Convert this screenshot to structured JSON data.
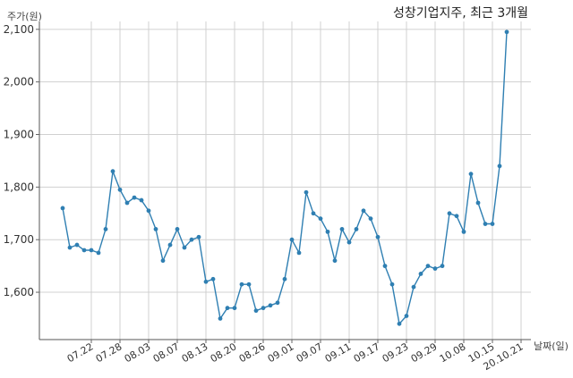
{
  "chart_data": {
    "type": "line",
    "title": "성창기업지주, 최근 3개월",
    "ylabel": "주가(원)",
    "xlabel": "날짜(일)",
    "ylim": [
      1510,
      2115
    ],
    "yticks": [
      1600,
      1700,
      1800,
      1900,
      2000,
      2100
    ],
    "ytick_labels": [
      "1,600",
      "1,700",
      "1,800",
      "1,900",
      "2,000",
      "2,100"
    ],
    "xtick_labels": [
      "07.22",
      "07.28",
      "08.03",
      "08.07",
      "08.13",
      "08.20",
      "08.26",
      "09.01",
      "09.07",
      "09.11",
      "09.17",
      "09.23",
      "09.29",
      "10.08",
      "10.15",
      "20.10.21"
    ],
    "xtick_index": [
      4,
      8,
      12,
      16,
      20,
      24,
      28,
      32,
      36,
      40,
      44,
      48,
      52,
      56,
      60,
      64
    ],
    "grid": true,
    "color": "#2f7fb2",
    "series": [
      {
        "values": [
          1760,
          1685,
          1690,
          1680,
          1680,
          1675,
          1720,
          1830,
          1795,
          1770,
          1780,
          1775,
          1755,
          1720,
          1660,
          1690,
          1720,
          1685,
          1700,
          1705,
          1620,
          1625,
          1550,
          1570,
          1570,
          1615,
          1615,
          1565,
          1570,
          1575,
          1580,
          1625,
          1700,
          1675,
          1790,
          1750,
          1740,
          1715,
          1660,
          1720,
          1695,
          1720,
          1755,
          1740,
          1705,
          1650,
          1615,
          1540,
          1555,
          1610,
          1635,
          1650,
          1645,
          1650,
          1750,
          1745,
          1715,
          1825,
          1770,
          1730,
          1730,
          1840,
          2095
        ]
      }
    ]
  }
}
